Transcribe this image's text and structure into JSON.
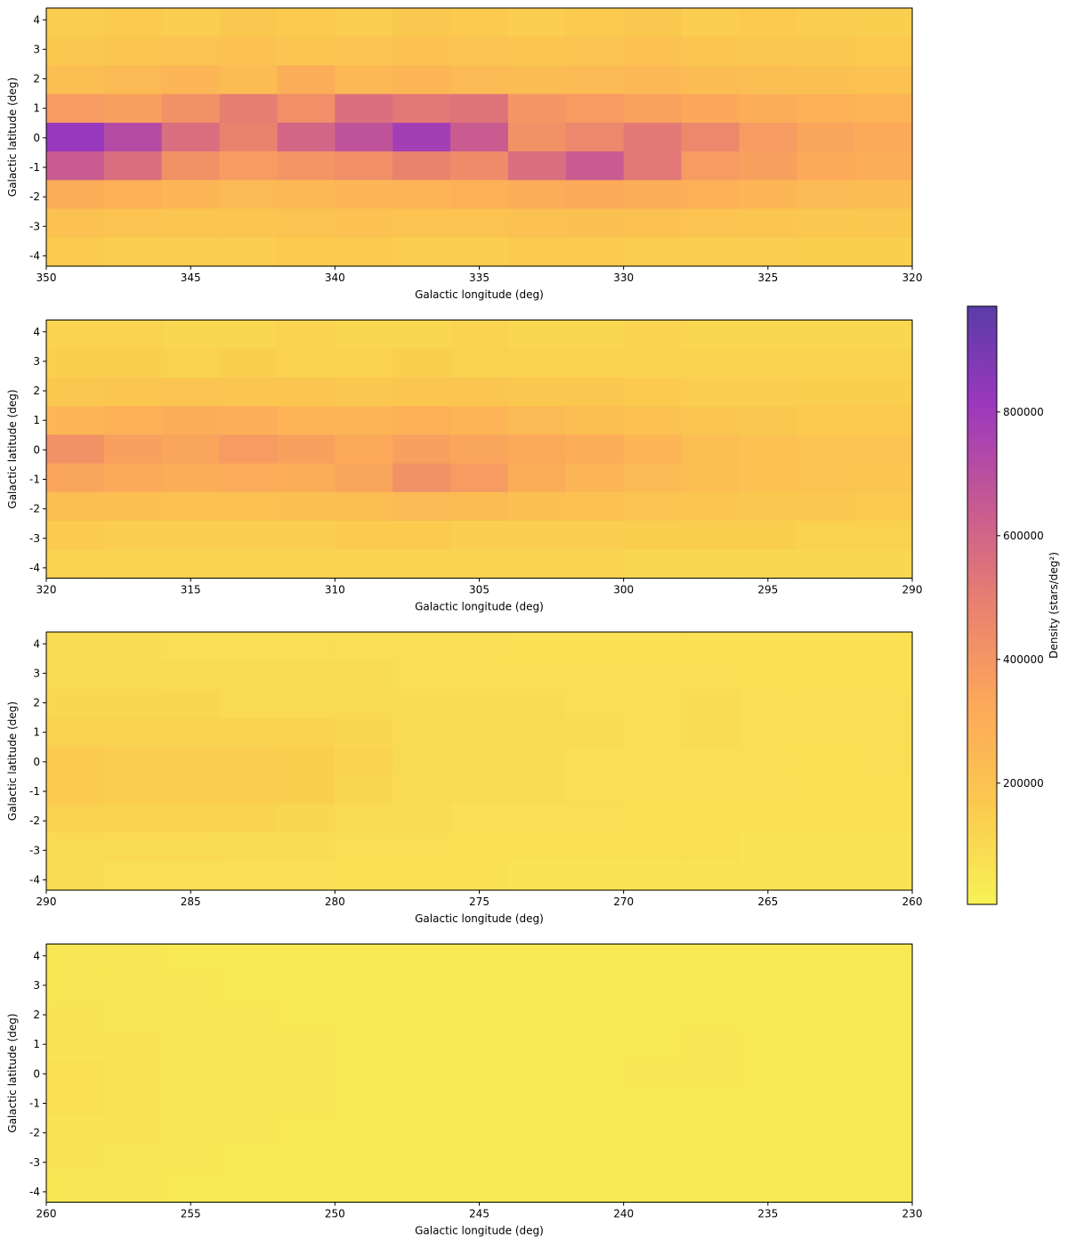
{
  "chart_data": [
    {
      "type": "heatmap",
      "xlabel": "Galactic longitude (deg)",
      "ylabel": "Galactic latitude (deg)",
      "xlim": [
        350,
        320
      ],
      "ylim": [
        -4.35,
        4.4
      ],
      "xticks": [
        350,
        345,
        340,
        335,
        330,
        325,
        320
      ],
      "yticks": [
        -4,
        -3,
        -2,
        -1,
        0,
        1,
        2,
        3,
        4
      ],
      "z": [
        [
          150000,
          160000,
          150000,
          170000,
          160000,
          150000,
          170000,
          160000,
          150000,
          160000,
          170000,
          150000,
          160000,
          150000,
          140000
        ],
        [
          170000,
          180000,
          190000,
          200000,
          180000,
          190000,
          200000,
          190000,
          180000,
          190000,
          200000,
          180000,
          170000,
          170000,
          160000
        ],
        [
          220000,
          240000,
          260000,
          230000,
          300000,
          250000,
          260000,
          240000,
          230000,
          240000,
          250000,
          230000,
          220000,
          210000,
          200000
        ],
        [
          380000,
          360000,
          420000,
          500000,
          430000,
          560000,
          520000,
          540000,
          400000,
          380000,
          350000,
          330000,
          300000,
          280000,
          270000
        ],
        [
          820000,
          720000,
          560000,
          480000,
          600000,
          680000,
          780000,
          640000,
          420000,
          460000,
          520000,
          460000,
          380000,
          340000,
          320000
        ],
        [
          640000,
          560000,
          420000,
          380000,
          400000,
          430000,
          480000,
          440000,
          560000,
          640000,
          520000,
          380000,
          360000,
          320000,
          300000
        ],
        [
          300000,
          280000,
          260000,
          240000,
          250000,
          260000,
          270000,
          280000,
          300000,
          320000,
          300000,
          280000,
          260000,
          240000,
          230000
        ],
        [
          200000,
          190000,
          180000,
          180000,
          190000,
          200000,
          190000,
          190000,
          200000,
          210000,
          200000,
          190000,
          180000,
          170000,
          170000
        ],
        [
          160000,
          150000,
          150000,
          150000,
          160000,
          160000,
          150000,
          150000,
          160000,
          160000,
          150000,
          150000,
          150000,
          140000,
          140000
        ]
      ]
    },
    {
      "type": "heatmap",
      "xlabel": "Galactic longitude (deg)",
      "ylabel": "Galactic latitude (deg)",
      "xlim": [
        320,
        290
      ],
      "ylim": [
        -4.35,
        4.4
      ],
      "xticks": [
        320,
        315,
        310,
        305,
        300,
        295,
        290
      ],
      "yticks": [
        -4,
        -3,
        -2,
        -1,
        0,
        1,
        2,
        3,
        4
      ],
      "z": [
        [
          120000,
          120000,
          110000,
          110000,
          120000,
          110000,
          110000,
          120000,
          110000,
          110000,
          120000,
          110000,
          110000,
          110000,
          110000
        ],
        [
          140000,
          140000,
          130000,
          140000,
          130000,
          130000,
          140000,
          130000,
          130000,
          130000,
          130000,
          120000,
          120000,
          120000,
          120000
        ],
        [
          170000,
          180000,
          190000,
          180000,
          180000,
          170000,
          180000,
          180000,
          170000,
          170000,
          160000,
          150000,
          150000,
          140000,
          140000
        ],
        [
          260000,
          280000,
          300000,
          290000,
          270000,
          260000,
          280000,
          270000,
          240000,
          220000,
          200000,
          180000,
          170000,
          160000,
          160000
        ],
        [
          420000,
          360000,
          340000,
          380000,
          360000,
          320000,
          360000,
          340000,
          320000,
          300000,
          260000,
          220000,
          200000,
          190000,
          190000
        ],
        [
          340000,
          320000,
          300000,
          310000,
          300000,
          340000,
          420000,
          380000,
          300000,
          260000,
          240000,
          220000,
          200000,
          190000,
          180000
        ],
        [
          220000,
          210000,
          200000,
          200000,
          210000,
          220000,
          240000,
          230000,
          210000,
          200000,
          190000,
          180000,
          170000,
          170000,
          160000
        ],
        [
          160000,
          150000,
          150000,
          150000,
          150000,
          160000,
          160000,
          150000,
          150000,
          150000,
          140000,
          140000,
          140000,
          130000,
          130000
        ],
        [
          130000,
          120000,
          120000,
          120000,
          120000,
          120000,
          120000,
          120000,
          120000,
          120000,
          110000,
          110000,
          110000,
          110000,
          110000
        ]
      ]
    },
    {
      "type": "heatmap",
      "xlabel": "Galactic longitude (deg)",
      "ylabel": "Galactic latitude (deg)",
      "xlim": [
        290,
        260
      ],
      "ylim": [
        -4.35,
        4.4
      ],
      "xticks": [
        290,
        285,
        280,
        275,
        270,
        265,
        260
      ],
      "yticks": [
        -4,
        -3,
        -2,
        -1,
        0,
        1,
        2,
        3,
        4
      ],
      "z": [
        [
          90000,
          90000,
          80000,
          80000,
          80000,
          80000,
          80000,
          80000,
          70000,
          70000,
          70000,
          70000,
          70000,
          70000,
          70000
        ],
        [
          100000,
          100000,
          90000,
          90000,
          90000,
          90000,
          80000,
          80000,
          80000,
          80000,
          80000,
          80000,
          70000,
          70000,
          70000
        ],
        [
          110000,
          110000,
          110000,
          100000,
          100000,
          100000,
          90000,
          90000,
          90000,
          80000,
          80000,
          90000,
          80000,
          80000,
          80000
        ],
        [
          130000,
          130000,
          130000,
          120000,
          120000,
          110000,
          100000,
          90000,
          100000,
          90000,
          80000,
          90000,
          80000,
          80000,
          80000
        ],
        [
          160000,
          150000,
          150000,
          150000,
          140000,
          120000,
          100000,
          90000,
          90000,
          80000,
          80000,
          80000,
          80000,
          70000,
          80000
        ],
        [
          160000,
          150000,
          150000,
          150000,
          140000,
          110000,
          100000,
          90000,
          90000,
          80000,
          80000,
          80000,
          80000,
          70000,
          70000
        ],
        [
          130000,
          120000,
          120000,
          120000,
          110000,
          100000,
          90000,
          80000,
          80000,
          80000,
          70000,
          70000,
          70000,
          70000,
          70000
        ],
        [
          100000,
          100000,
          100000,
          90000,
          90000,
          80000,
          80000,
          70000,
          70000,
          70000,
          70000,
          70000,
          60000,
          60000,
          60000
        ],
        [
          90000,
          80000,
          80000,
          80000,
          80000,
          70000,
          70000,
          70000,
          60000,
          60000,
          60000,
          60000,
          60000,
          60000,
          60000
        ]
      ]
    },
    {
      "type": "heatmap",
      "xlabel": "Galactic longitude (deg)",
      "ylabel": "Galactic latitude (deg)",
      "xlim": [
        260,
        230
      ],
      "ylim": [
        -4.35,
        4.4
      ],
      "xticks": [
        260,
        255,
        250,
        245,
        240,
        235,
        230
      ],
      "yticks": [
        -4,
        -3,
        -2,
        -1,
        0,
        1,
        2,
        3,
        4
      ],
      "z": [
        [
          50000,
          50000,
          40000,
          40000,
          40000,
          40000,
          40000,
          40000,
          40000,
          40000,
          40000,
          40000,
          40000,
          40000,
          40000
        ],
        [
          50000,
          50000,
          50000,
          40000,
          40000,
          40000,
          40000,
          40000,
          40000,
          40000,
          40000,
          40000,
          40000,
          40000,
          40000
        ],
        [
          60000,
          50000,
          50000,
          50000,
          40000,
          40000,
          40000,
          40000,
          40000,
          40000,
          40000,
          40000,
          40000,
          40000,
          40000
        ],
        [
          60000,
          60000,
          50000,
          50000,
          50000,
          40000,
          40000,
          40000,
          40000,
          40000,
          40000,
          50000,
          40000,
          40000,
          40000
        ],
        [
          70000,
          60000,
          50000,
          50000,
          50000,
          40000,
          40000,
          40000,
          40000,
          40000,
          50000,
          50000,
          40000,
          40000,
          40000
        ],
        [
          70000,
          60000,
          50000,
          50000,
          50000,
          40000,
          40000,
          40000,
          40000,
          40000,
          40000,
          40000,
          40000,
          40000,
          40000
        ],
        [
          60000,
          60000,
          50000,
          50000,
          40000,
          40000,
          40000,
          40000,
          40000,
          40000,
          40000,
          40000,
          40000,
          40000,
          40000
        ],
        [
          60000,
          50000,
          50000,
          40000,
          40000,
          40000,
          40000,
          40000,
          40000,
          40000,
          40000,
          40000,
          40000,
          40000,
          40000
        ],
        [
          50000,
          50000,
          40000,
          40000,
          40000,
          40000,
          40000,
          40000,
          40000,
          40000,
          40000,
          40000,
          40000,
          40000,
          40000
        ]
      ]
    },
    {
      "type": "colorbar",
      "label": "Density (stars/deg²)",
      "ylim": [
        4000,
        971000
      ],
      "yticks": [
        200000,
        400000,
        600000,
        800000
      ],
      "colormap": [
        "#f7f256",
        "#fbc94f",
        "#fca85a",
        "#e9816f",
        "#c65a92",
        "#9c38bd",
        "#5a3ca8"
      ]
    }
  ]
}
